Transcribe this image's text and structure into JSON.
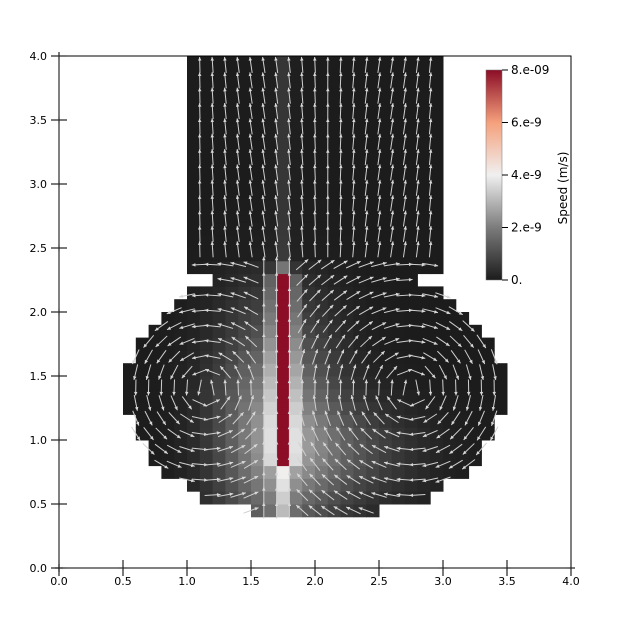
{
  "chart_data": {
    "type": "vector-field-heatmap",
    "x_ticks": [
      "0.0",
      "0.5",
      "1.0",
      "1.5",
      "2.0",
      "2.5",
      "3.0",
      "3.5",
      "4.0"
    ],
    "y_ticks": [
      "0.0",
      "0.5",
      "1.0",
      "1.5",
      "2.0",
      "2.5",
      "3.0",
      "3.5",
      "4.0"
    ],
    "xlim": [
      0,
      4
    ],
    "ylim": [
      0,
      4
    ],
    "colorbar": {
      "title": "Speed (m/s)",
      "labels": [
        "8.e-09",
        "6.e-9",
        "4.e-9",
        "2.e-9",
        "0."
      ],
      "range": [
        0,
        8e-09
      ],
      "colors": [
        "#8b0d26",
        "#f5a07c",
        "#f0f0f0",
        "#7c7c7c",
        "#1c1c1c"
      ]
    },
    "domain_description": "flask-shaped domain: neck x 1.0 to 3.0, y 2.3 to 4.0; bulb approx x 0.6 to 3.4, y 0.4 to 2.3; high-speed jet near x 1.75, y 0.9 to 2.3"
  }
}
